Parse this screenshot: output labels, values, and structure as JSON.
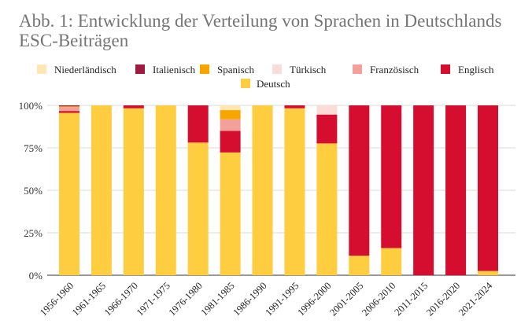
{
  "chart_data": {
    "type": "bar",
    "stacked": true,
    "title": "Abb. 1: Entwicklung der Verteilung von Sprachen in Deutschlands ESC-Beiträgen",
    "xlabel": "",
    "ylabel": "",
    "ylim": [
      0,
      100
    ],
    "yticks": [
      "0%",
      "25%",
      "50%",
      "75%",
      "100%"
    ],
    "grid": true,
    "legend": "top",
    "categories": [
      "1956-1960",
      "1961-1965",
      "1966-1970",
      "1971-1975",
      "1976-1980",
      "1981-1985",
      "1986-1990",
      "1991-1995",
      "1996-2000",
      "2001-2005",
      "2006-2010",
      "2011-2015",
      "2016-2020",
      "2021-2024"
    ],
    "series": [
      {
        "name": "Deutsch",
        "color": "#FFCD40",
        "values": [
          95.6,
          100,
          98.3,
          100,
          78.1,
          72.3,
          100,
          98.3,
          77.6,
          11.5,
          16,
          0,
          0,
          2.5
        ]
      },
      {
        "name": "Englisch",
        "color": "#D50D2F",
        "values": [
          1.1,
          0,
          1.7,
          0,
          21.9,
          12.7,
          0,
          1.7,
          17,
          88.5,
          84,
          100,
          100,
          97.5
        ]
      },
      {
        "name": "Französisch",
        "color": "#F4A09A",
        "values": [
          2.2,
          0,
          0,
          0,
          0,
          6.8,
          0,
          0,
          0,
          0,
          0,
          0,
          0,
          0
        ]
      },
      {
        "name": "Türkisch",
        "color": "#FCDCD6",
        "values": [
          0,
          0,
          0,
          0,
          0,
          0,
          0,
          0,
          5.4,
          0,
          0,
          0,
          0,
          0
        ]
      },
      {
        "name": "Spanisch",
        "color": "#F7A600",
        "values": [
          0.5,
          0,
          0,
          0,
          0,
          5.4,
          0,
          0,
          0,
          0,
          0,
          0,
          0,
          0
        ]
      },
      {
        "name": "Italienisch",
        "color": "#9E1C40",
        "values": [
          0.6,
          0,
          0,
          0,
          0,
          0,
          0,
          0,
          0,
          0,
          0,
          0,
          0,
          0
        ]
      },
      {
        "name": "Niederländisch",
        "color": "#FFE6B3",
        "values": [
          0,
          0,
          0,
          0,
          0,
          2.8,
          0,
          0,
          0,
          0,
          0,
          0,
          0,
          0
        ]
      }
    ],
    "legend_order": [
      "Niederländisch",
      "Italienisch",
      "Spanisch",
      "Türkisch",
      "Französisch",
      "Englisch",
      "Deutsch"
    ]
  }
}
